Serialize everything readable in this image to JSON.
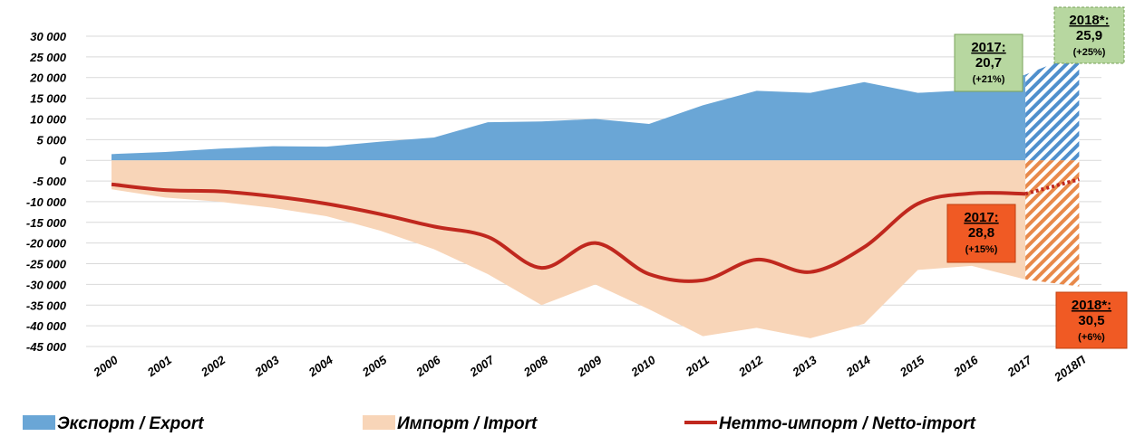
{
  "chart_data": {
    "type": "area",
    "categories": [
      "2000",
      "2001",
      "2002",
      "2003",
      "2004",
      "2005",
      "2006",
      "2007",
      "2008",
      "2009",
      "2010",
      "2011",
      "2012",
      "2013",
      "2014",
      "2015",
      "2016",
      "2017",
      "2018П"
    ],
    "series": [
      {
        "name": "Экспорт / Export",
        "color": "#6aa6d6",
        "values": [
          1500,
          2000,
          2800,
          3400,
          3300,
          4500,
          5500,
          9200,
          9400,
          10000,
          8800,
          13300,
          16800,
          16300,
          18900,
          16300,
          17000,
          20700,
          25900
        ]
      },
      {
        "name": "Импорт / Import",
        "color": "#f8d5b8",
        "values": [
          -7000,
          -9000,
          -10000,
          -11500,
          -13500,
          -17000,
          -21500,
          -27500,
          -35000,
          -30000,
          -36000,
          -42500,
          -40500,
          -43000,
          -39500,
          -26500,
          -25500,
          -28800,
          -30500
        ]
      },
      {
        "name": "Нетто-импорт / Netto-import",
        "color": "#c0281e",
        "values": [
          -5800,
          -7200,
          -7500,
          -8700,
          -10500,
          -13000,
          -16000,
          -18500,
          -26000,
          -20000,
          -27500,
          -29000,
          -24000,
          -27000,
          -21000,
          -10500,
          -8000,
          -8100,
          -4600
        ]
      }
    ],
    "ylim": [
      -45000,
      30000
    ],
    "yticks": [
      {
        "value": 30000,
        "label": "30 000"
      },
      {
        "value": 25000,
        "label": "25 000"
      },
      {
        "value": 20000,
        "label": "20 000"
      },
      {
        "value": 15000,
        "label": "15 000"
      },
      {
        "value": 10000,
        "label": "10 000"
      },
      {
        "value": 5000,
        "label": "5 000"
      },
      0,
      {
        "value": -5000,
        "label": "-5 000"
      },
      {
        "value": -10000,
        "label": "-10 000"
      },
      {
        "value": -15000,
        "label": "-15 000"
      },
      {
        "value": -20000,
        "label": "-20 000"
      },
      {
        "value": -25000,
        "label": "-25 000"
      },
      {
        "value": -30000,
        "label": "-30 000"
      },
      {
        "value": -35000,
        "label": "-35 000"
      },
      {
        "value": -40000,
        "label": "-40 000"
      },
      {
        "value": -45000,
        "label": "-45 000"
      }
    ],
    "grid": true,
    "annotations": [
      {
        "year": "2017:",
        "value": "20,7",
        "change": "(+21%)"
      },
      {
        "year": "2018*:",
        "value": "25,9",
        "change": "(+25%)"
      },
      {
        "year": "2017:",
        "value": "28,8",
        "change": "(+15%)"
      },
      {
        "year": "2018*:",
        "value": "30,5",
        "change": "(+6%)"
      }
    ]
  }
}
